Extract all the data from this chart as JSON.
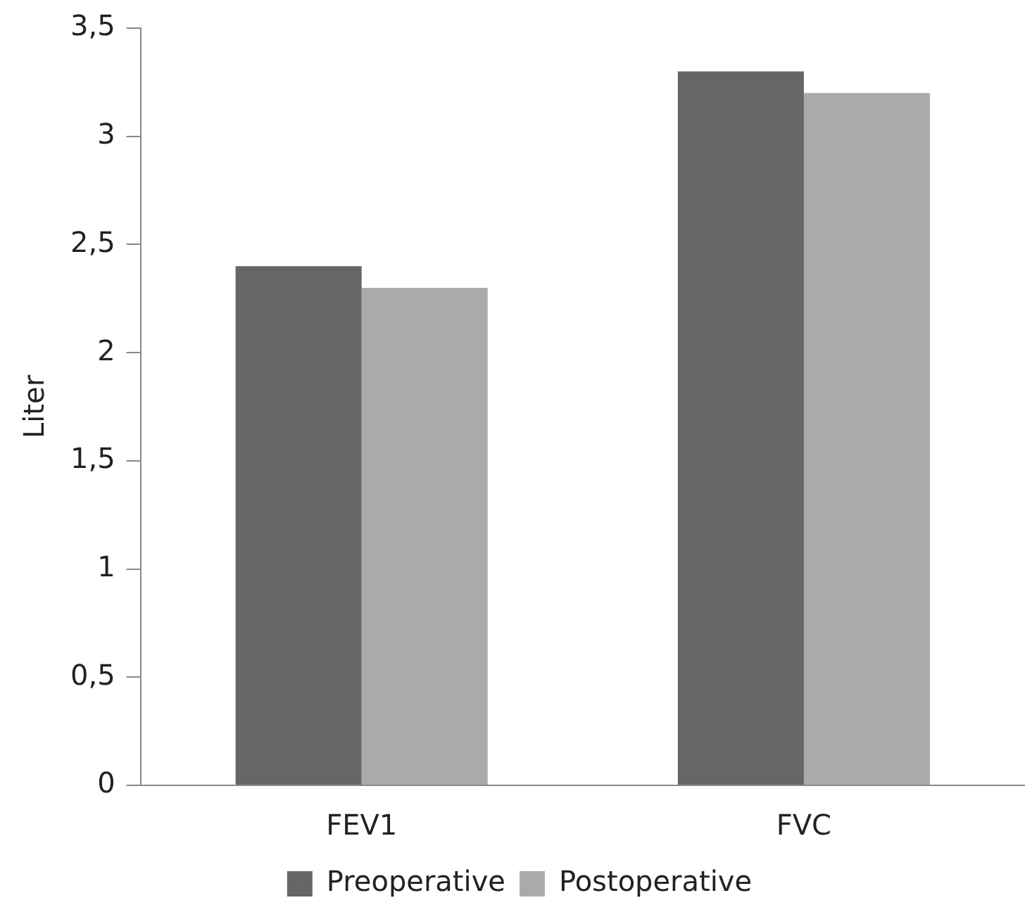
{
  "chart_data": {
    "type": "bar",
    "ylabel": "Liter",
    "categories": [
      "FEV1",
      "FVC"
    ],
    "series": [
      {
        "name": "Preoperative",
        "color": "#666666",
        "values": [
          2.4,
          3.3
        ]
      },
      {
        "name": "Postoperative",
        "color": "#aaaaaa",
        "values": [
          2.3,
          3.2
        ]
      }
    ],
    "ylim": [
      0,
      3.5
    ],
    "yticks": [
      0,
      {
        "value": 0.5,
        "label": "0,5"
      },
      1,
      {
        "value": 1.5,
        "label": "1,5"
      },
      2,
      {
        "value": 2.5,
        "label": "2,5"
      },
      3,
      {
        "value": 3.5,
        "label": "3,5"
      }
    ],
    "grid": false,
    "legend": "bottom"
  }
}
